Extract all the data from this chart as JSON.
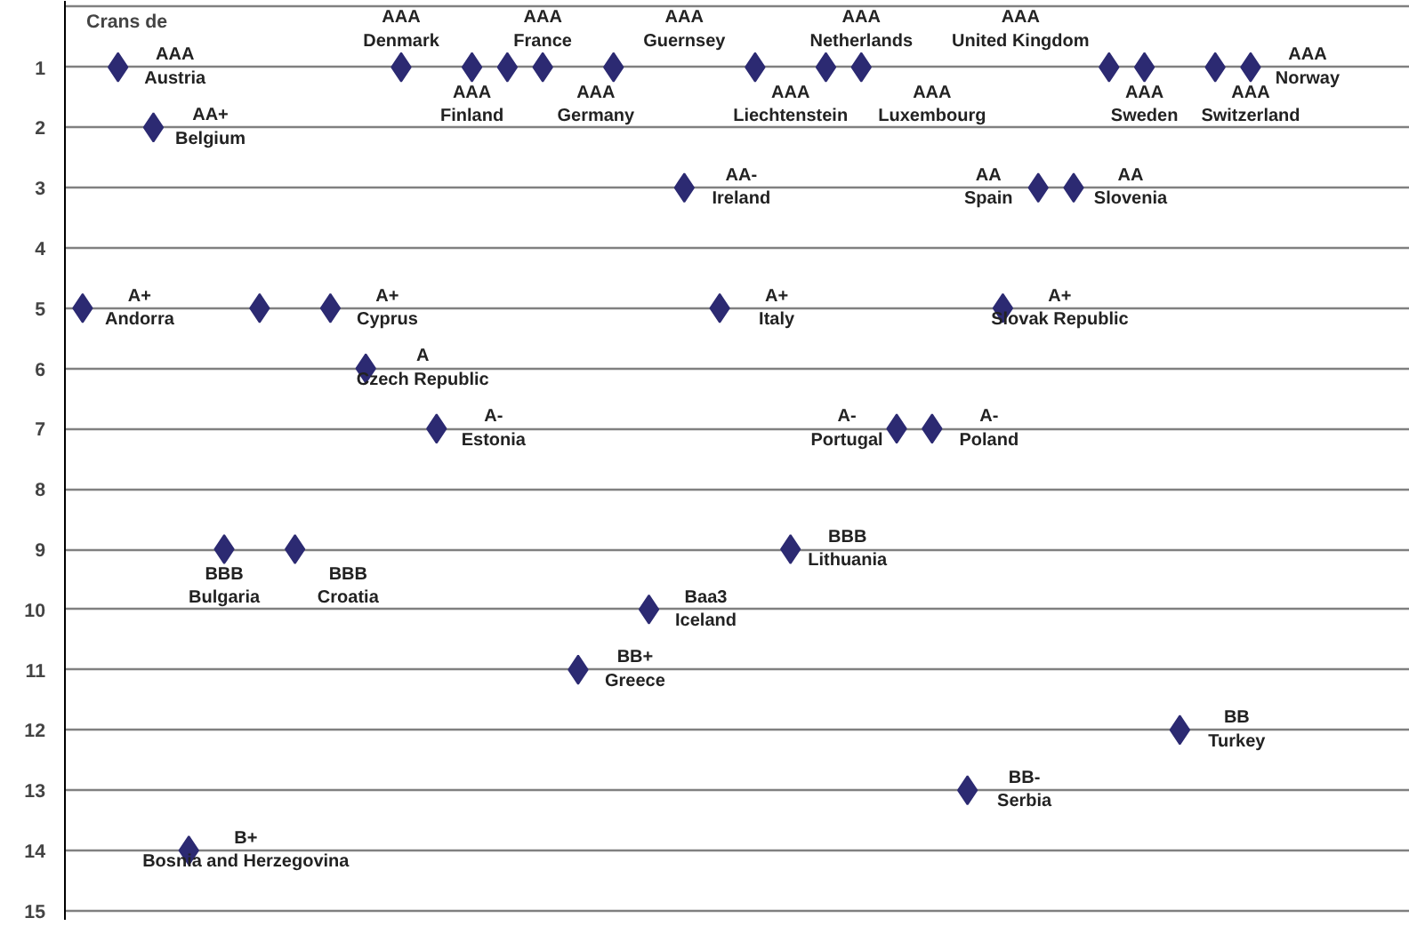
{
  "chart_data": {
    "type": "scatter",
    "ylabel": "Crans de",
    "marker": "diamond",
    "grid": "y",
    "categories": [
      null,
      null,
      null,
      null,
      null,
      null,
      null,
      null,
      null,
      null,
      null,
      null,
      null,
      null,
      null,
      null,
      null,
      null,
      null,
      null,
      null,
      null,
      null,
      null,
      null,
      null,
      null,
      null,
      null,
      null,
      null,
      null,
      null,
      null,
      null,
      null,
      null,
      null
    ],
    "series": [
      {
        "color": "#2c2a72",
        "values": [
          5,
          1,
          2,
          14,
          9,
          5,
          9,
          5,
          6,
          1,
          7,
          1,
          1,
          1,
          11,
          1,
          10,
          3,
          5,
          1,
          9,
          1,
          1,
          7,
          7,
          13,
          5,
          3,
          3,
          1,
          1,
          12,
          1,
          1,
          null,
          null,
          null,
          null
        ]
      }
    ],
    "value_labels": [
      "A+\nAndorra",
      "AAA\nAustria",
      "AA+\nBelgium",
      "B+\nBosnia and Herzegovina",
      "BBB\nBulgaria",
      null,
      "BBB\nCroatia",
      "A+\nCyprus",
      "A\nCzech Republic",
      "AAA\nDenmark",
      "A-\nEstonia",
      "AAA\nFinland",
      "AAA\nFrance",
      "AAA\nGermany",
      "BB+\nGreece",
      "AAA\nGuernsey",
      "Baa3\nIceland",
      "AA-\nIreland",
      "A+\nItaly",
      "AAA\nLiechtenstein",
      "BBB\nLithuania",
      "AAA\nLuxembourg",
      "AAA\nNetherlands",
      "A-\nPortugal",
      "A-\nPoland",
      "BB-\nSerbia",
      "A+\nSlovak Republic",
      "AA\nSpain",
      "AA\nSlovenia",
      "AAA\nUnited Kingdom",
      "AAA\nSweden",
      "BB\nTurkey",
      "AAA\nSwitzerland",
      "AAA\nNorway",
      null,
      null,
      null,
      null
    ],
    "ylim": [
      15.15,
      -0.1
    ],
    "yticks": [
      {
        "value": 0,
        "label": null
      },
      1,
      2,
      3,
      4,
      5,
      6,
      7,
      8,
      9,
      10,
      11,
      12,
      13,
      14,
      15
    ]
  }
}
